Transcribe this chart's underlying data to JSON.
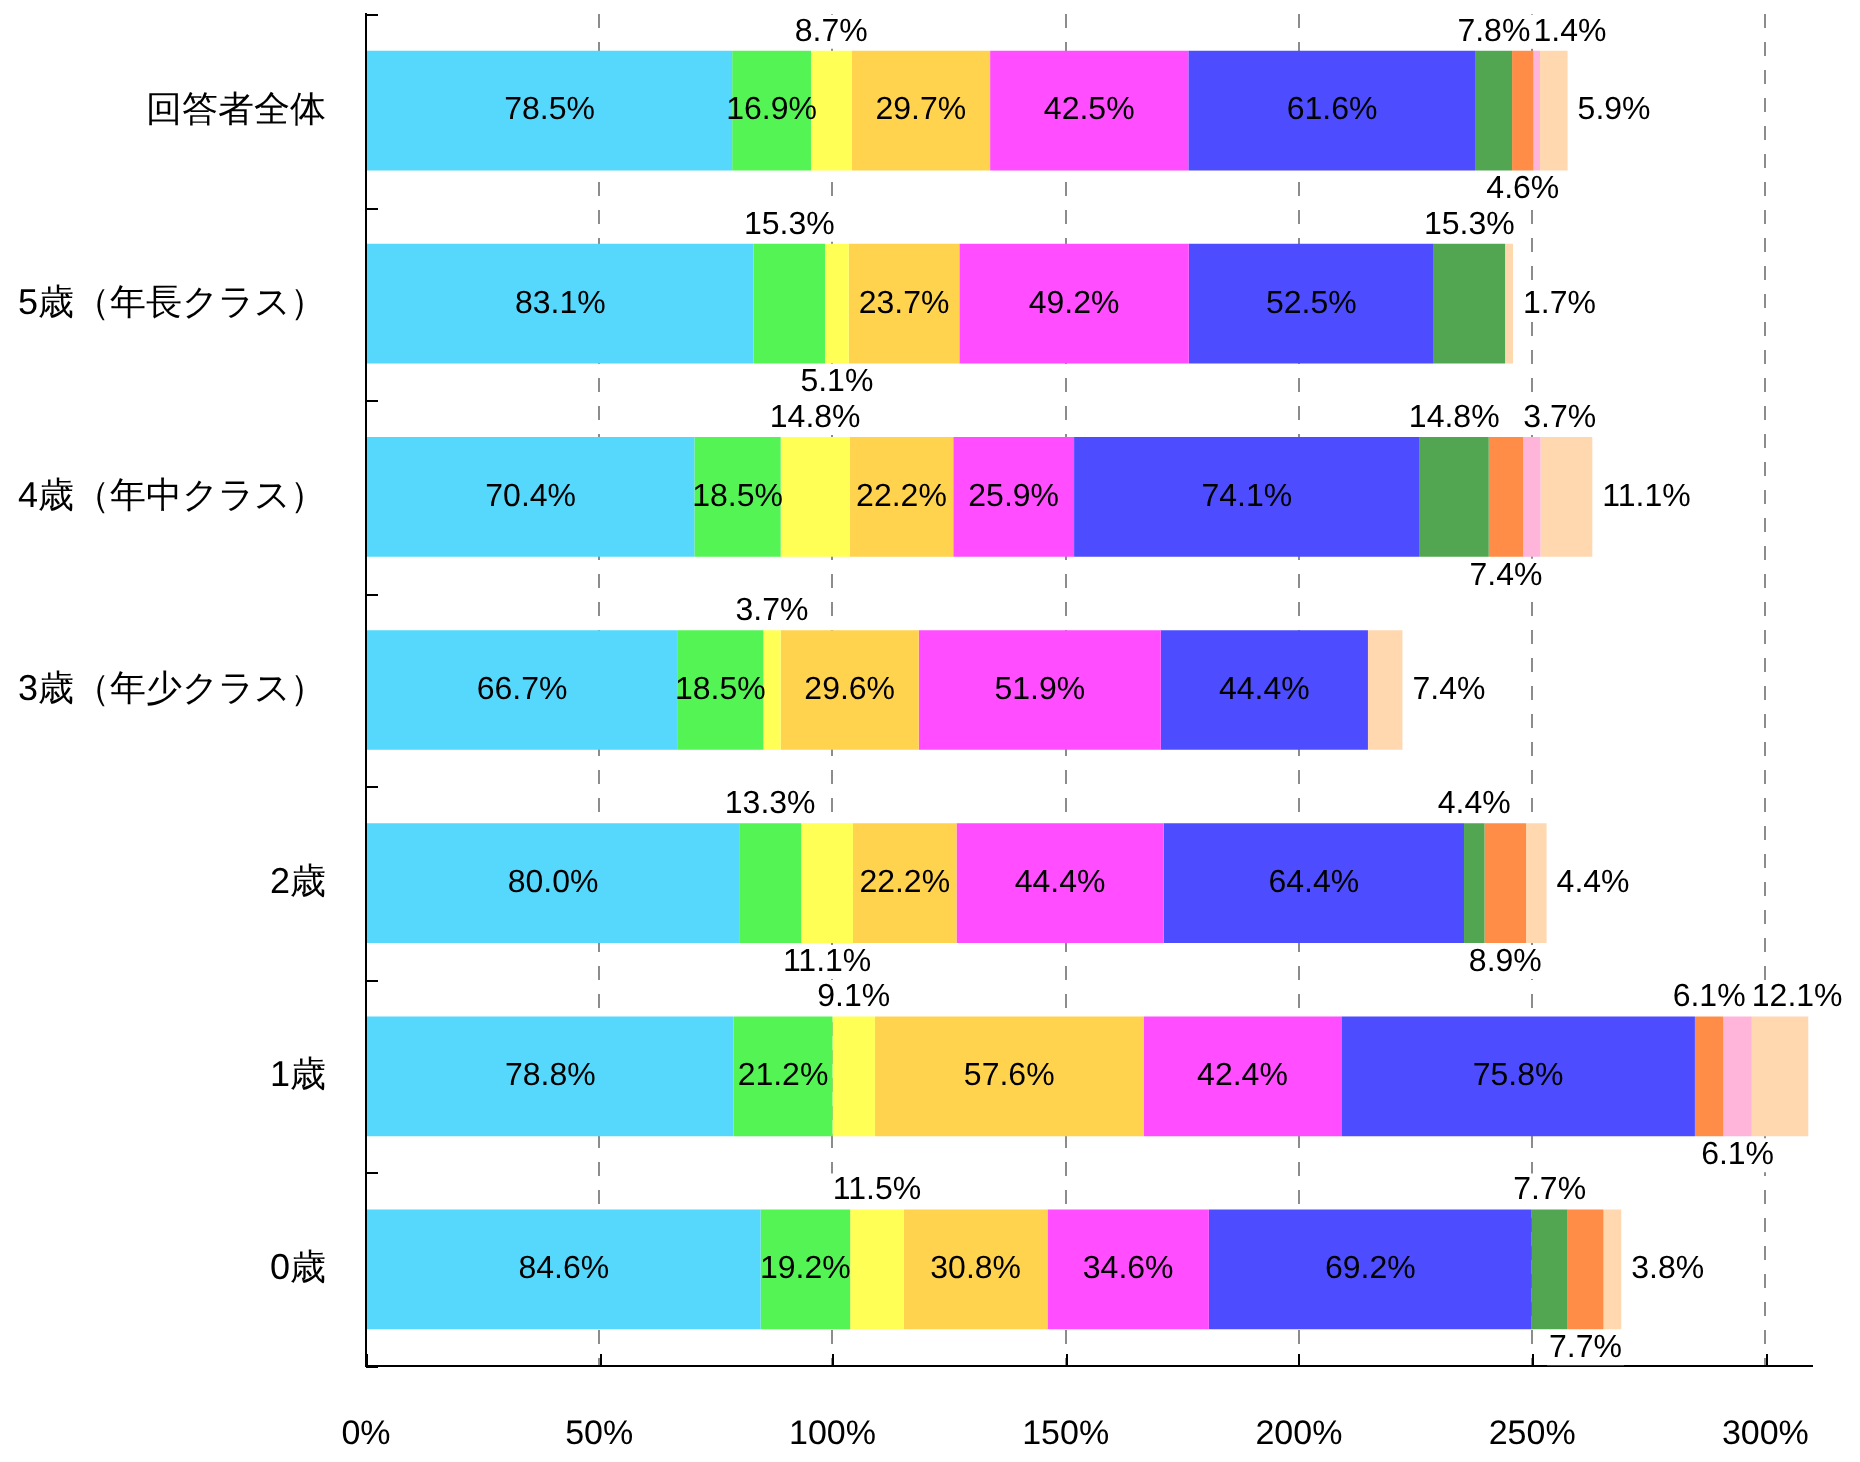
{
  "chart_data": {
    "type": "bar",
    "orientation": "horizontal",
    "stacked": true,
    "categories": [
      "回答者全体",
      "5歳（年長クラス）",
      "4歳（年中クラス）",
      "3歳（年少クラス）",
      "2歳",
      "1歳",
      "0歳"
    ],
    "series": [
      {
        "color": "#55d8fb",
        "values": [
          78.5,
          83.1,
          70.4,
          66.7,
          80.0,
          78.8,
          84.6
        ],
        "value_labels": [
          "78.5%",
          "83.1%",
          "70.4%",
          "66.7%",
          "80.0%",
          "78.8%",
          "84.6%"
        ]
      },
      {
        "color": "#55f455",
        "values": [
          16.9,
          15.3,
          18.5,
          18.5,
          13.3,
          21.2,
          19.2
        ],
        "value_labels": [
          "16.9%",
          "15.3%",
          "18.5%",
          "18.5%",
          "13.3%",
          "21.2%",
          "19.2%"
        ]
      },
      {
        "color": "#ffff55",
        "values": [
          8.7,
          5.1,
          14.8,
          3.7,
          11.1,
          9.1,
          11.5
        ],
        "value_labels": [
          "8.7%",
          "5.1%",
          "14.8%",
          "3.7%",
          "11.1%",
          "9.1%",
          "11.5%"
        ]
      },
      {
        "color": "#ffd34d",
        "values": [
          29.7,
          23.7,
          22.2,
          29.6,
          22.2,
          57.6,
          30.8
        ],
        "value_labels": [
          "29.7%",
          "23.7%",
          "22.2%",
          "29.6%",
          "22.2%",
          "57.6%",
          "30.8%"
        ]
      },
      {
        "color": "#ff4dff",
        "values": [
          42.5,
          49.2,
          25.9,
          51.9,
          44.4,
          42.4,
          34.6
        ],
        "value_labels": [
          "42.5%",
          "49.2%",
          "25.9%",
          "51.9%",
          "44.4%",
          "42.4%",
          "34.6%"
        ]
      },
      {
        "color": "#4d4dff",
        "values": [
          61.6,
          52.5,
          74.1,
          44.4,
          64.4,
          75.8,
          69.2
        ],
        "value_labels": [
          "61.6%",
          "52.5%",
          "74.1%",
          "44.4%",
          "64.4%",
          "75.8%",
          "69.2%"
        ]
      },
      {
        "color": "#52a652",
        "values": [
          7.8,
          15.3,
          14.8,
          null,
          4.4,
          null,
          7.7
        ],
        "value_labels": [
          "7.8%",
          "15.3%",
          "14.8%",
          null,
          "4.4%",
          null,
          "7.7%"
        ]
      },
      {
        "color": "#ff8d48",
        "values": [
          4.6,
          null,
          7.4,
          null,
          8.9,
          6.1,
          7.7
        ],
        "value_labels": [
          "4.6%",
          null,
          "7.4%",
          null,
          "8.9%",
          "6.1%",
          "7.7%"
        ]
      },
      {
        "color": "#ffb5da",
        "values": [
          1.4,
          null,
          3.7,
          null,
          null,
          6.1,
          null
        ],
        "value_labels": [
          "1.4%",
          null,
          "3.7%",
          null,
          null,
          "6.1%",
          null
        ]
      },
      {
        "color": "#ffd8b0",
        "values": [
          5.9,
          1.7,
          11.1,
          7.4,
          4.4,
          12.1,
          3.8
        ],
        "value_labels": [
          "5.9%",
          "1.7%",
          "11.1%",
          "7.4%",
          "4.4%",
          "12.1%",
          "3.8%"
        ]
      }
    ],
    "xlim": [
      0,
      310
    ],
    "xticks": [
      {
        "value": 0,
        "label": "0%"
      },
      {
        "value": 50,
        "label": "50%"
      },
      {
        "value": 100,
        "label": "100%"
      },
      {
        "value": 150,
        "label": "150%"
      },
      {
        "value": 200,
        "label": "200%"
      },
      {
        "value": 250,
        "label": "250%"
      },
      {
        "value": 300,
        "label": "300%"
      }
    ],
    "grid": "x"
  }
}
